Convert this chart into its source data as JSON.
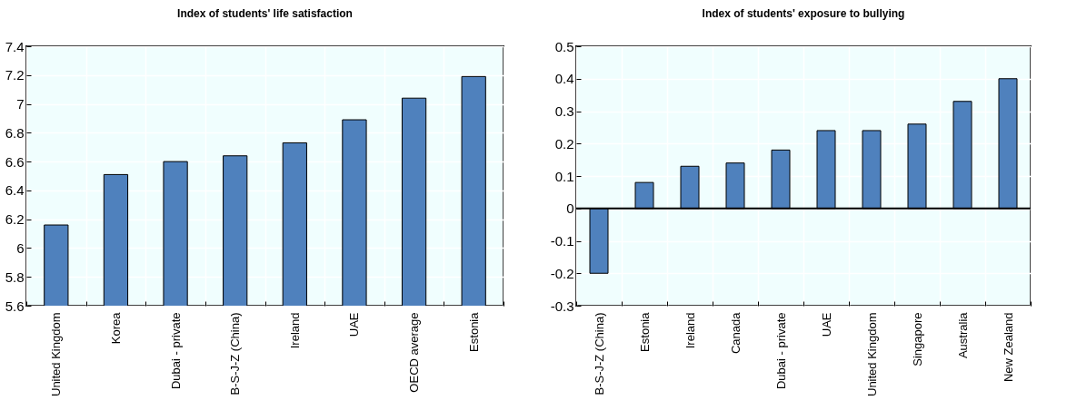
{
  "chart_data": [
    {
      "type": "bar",
      "title": "Index of students' life satisfaction",
      "categories": [
        "United Kingdom",
        "Korea",
        "Dubai - private",
        "B-S-J-Z (China)",
        "Ireland",
        "UAE",
        "OECD average",
        "Estonia"
      ],
      "values": [
        6.16,
        6.51,
        6.6,
        6.64,
        6.73,
        6.89,
        7.04,
        7.19
      ],
      "color": "#4f81bd",
      "ylim": [
        5.6,
        7.4
      ],
      "yticks": [
        5.6,
        5.8,
        6,
        6.2,
        6.4,
        6.6,
        6.8,
        7,
        7.2,
        7.4
      ],
      "grid": true
    },
    {
      "type": "bar",
      "title": "Index of students' exposure to bullying",
      "categories": [
        "B-S-J-Z (China)",
        "Estonia",
        "Ireland",
        "Canada",
        "Dubai - private",
        "UAE",
        "United Kingdom",
        "Singapore",
        "Australia",
        "New Zealand"
      ],
      "values": [
        -0.2,
        0.08,
        0.13,
        0.14,
        0.18,
        0.24,
        0.24,
        0.26,
        0.33,
        0.4
      ],
      "color": "#4f81bd",
      "ylim": [
        -0.3,
        0.5
      ],
      "yticks": [
        -0.3,
        -0.2,
        -0.1,
        0,
        0.1,
        0.2,
        0.3,
        0.4,
        0.5
      ],
      "grid": true
    }
  ]
}
